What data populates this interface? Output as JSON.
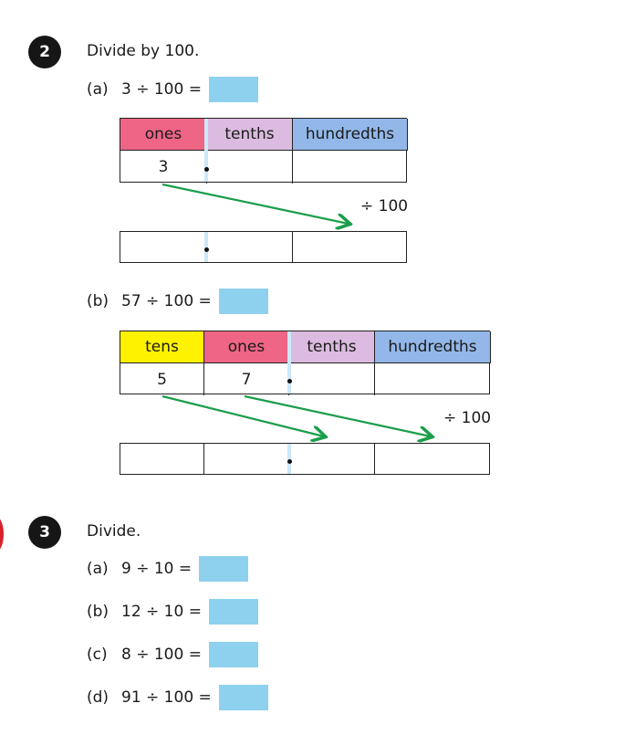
{
  "q2": {
    "number": "2",
    "instruction": "Divide by 100.",
    "part_a": {
      "label": "(a)",
      "expression": "3 ÷ 100 =",
      "headers": [
        "ones",
        "tenths",
        "hundredths"
      ],
      "digits": [
        "3",
        "",
        ""
      ],
      "operation": "÷ 100"
    },
    "part_b": {
      "label": "(b)",
      "expression": "57 ÷ 100 =",
      "headers": [
        "tens",
        "ones",
        "tenths",
        "hundredths"
      ],
      "digits": [
        "5",
        "7",
        "",
        ""
      ],
      "operation": "÷ 100"
    }
  },
  "q3": {
    "number": "3",
    "instruction": "Divide.",
    "items": [
      {
        "label": "(a)",
        "expression": "9 ÷ 10 ="
      },
      {
        "label": "(b)",
        "expression": "12 ÷ 10 ="
      },
      {
        "label": "(c)",
        "expression": "8 ÷ 100 ="
      },
      {
        "label": "(d)",
        "expression": "91 ÷ 100 ="
      }
    ]
  },
  "colors": {
    "answer_box": "#8ed1ee",
    "ones_header": "#ee6585",
    "tenths_header": "#dbbbdf",
    "hundredths_header": "#92b7e8",
    "tens_header": "#fff200",
    "arrow": "#1a9e4a",
    "decimal_point_line": "#cce8f7"
  }
}
